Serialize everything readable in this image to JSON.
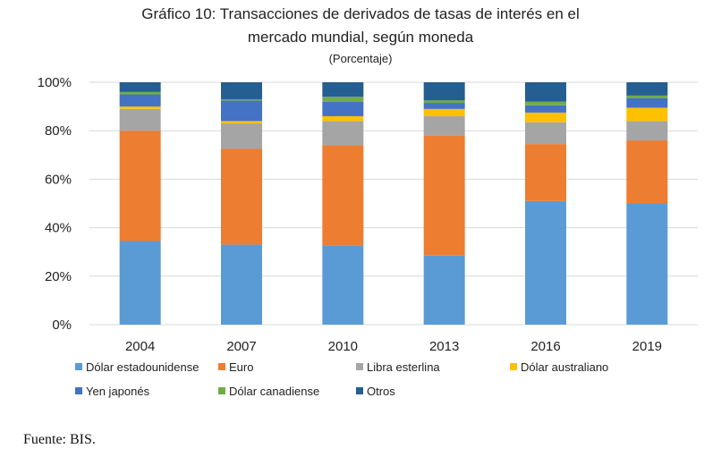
{
  "chart_data": {
    "type": "bar",
    "stacked": true,
    "title": "Gráfico 10: Transacciones de derivados de tasas de interés en el",
    "title_line2": "mercado mundial, según moneda",
    "subtitle": "(Porcentaje)",
    "categories": [
      "2004",
      "2007",
      "2010",
      "2013",
      "2016",
      "2019"
    ],
    "ylim": [
      0,
      100
    ],
    "yticks": [
      "0%",
      "20%",
      "40%",
      "60%",
      "80%",
      "100%"
    ],
    "ytick_values": [
      0,
      20,
      40,
      60,
      80,
      100
    ],
    "grid": true,
    "legend_position": "bottom",
    "series": [
      {
        "name": "Dólar estadounidense",
        "color": "#5b9bd5",
        "values": [
          34.5,
          33,
          32.5,
          28.5,
          51,
          50
        ]
      },
      {
        "name": "Euro",
        "color": "#ed7d31",
        "values": [
          45.5,
          39.5,
          41.5,
          49.5,
          23.5,
          26
        ]
      },
      {
        "name": "Libra esterlina",
        "color": "#a5a5a5",
        "values": [
          9,
          10.5,
          10,
          8,
          9,
          8
        ]
      },
      {
        "name": "Dólar australiano",
        "color": "#ffc000",
        "values": [
          1,
          1,
          2,
          3,
          4,
          5.5
        ]
      },
      {
        "name": "Yen japonés",
        "color": "#4472c4",
        "values": [
          5,
          8.5,
          6,
          2.5,
          3,
          4
        ]
      },
      {
        "name": "Dólar canadiense",
        "color": "#70ad47",
        "values": [
          1,
          0.5,
          2,
          1,
          1.5,
          1
        ]
      },
      {
        "name": "Otros",
        "color": "#255e91",
        "values": [
          4,
          7,
          6,
          7.5,
          8,
          5.5
        ]
      }
    ]
  },
  "source": "Fuente: BIS."
}
